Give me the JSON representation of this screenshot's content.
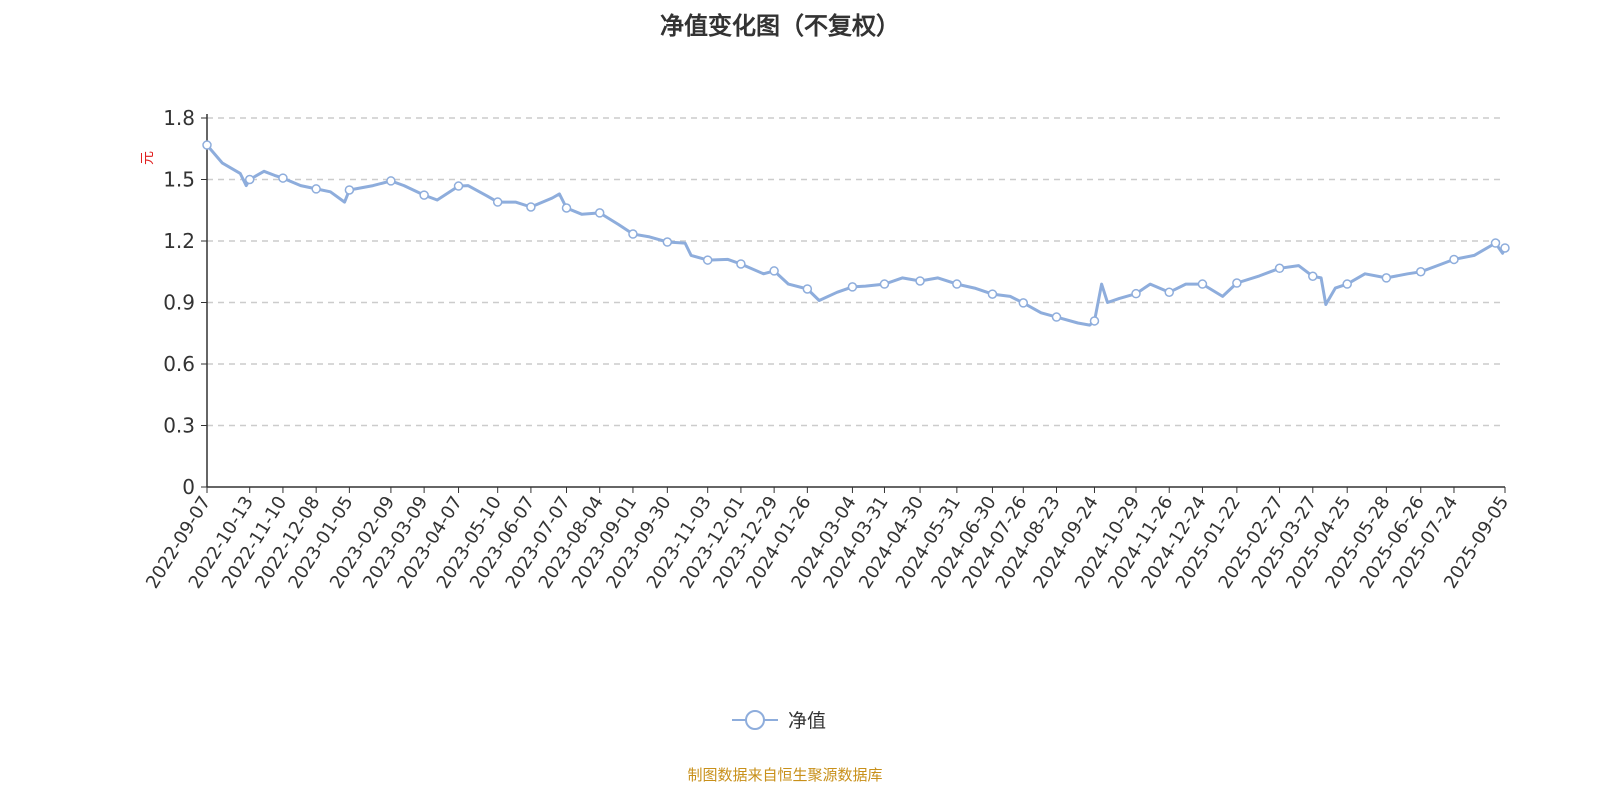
{
  "title": "净值变化图（不复权）",
  "source": "制图数据来自恒生聚源数据库",
  "chart_data": {
    "type": "line",
    "title": "净值变化图（不复权）",
    "ylabel": "元",
    "ylim": [
      0,
      1.8
    ],
    "yticks": [
      "0",
      "0.3",
      "0.6",
      "0.9",
      "1.2",
      "1.5",
      "1.8"
    ],
    "xlim": [
      "2022-09-07",
      "2025-09-05"
    ],
    "xticks": [
      "2022-09-07",
      "2022-10-13",
      "2022-11-10",
      "2022-12-08",
      "2023-01-05",
      "2023-02-09",
      "2023-03-09",
      "2023-04-07",
      "2023-05-10",
      "2023-06-07",
      "2023-07-07",
      "2023-08-04",
      "2023-09-01",
      "2023-09-30",
      "2023-11-03",
      "2023-12-01",
      "2023-12-29",
      "2024-01-26",
      "2024-03-04",
      "2024-03-31",
      "2024-04-30",
      "2024-05-31",
      "2024-06-30",
      "2024-07-26",
      "2024-08-23",
      "2024-09-24",
      "2024-10-29",
      "2024-11-26",
      "2024-12-24",
      "2025-01-22",
      "2025-02-27",
      "2025-03-27",
      "2025-04-25",
      "2025-05-28",
      "2025-06-26",
      "2025-07-24",
      "2025-09-05"
    ],
    "grid": true,
    "legend": "bottom",
    "color": "#8eaddc",
    "series": [
      {
        "name": "净值",
        "points": [
          [
            "2022-09-07",
            1.668
          ],
          [
            "2022-09-20",
            1.58
          ],
          [
            "2022-10-05",
            1.53
          ],
          [
            "2022-10-10",
            1.47
          ],
          [
            "2022-10-13",
            1.5
          ],
          [
            "2022-10-25",
            1.54
          ],
          [
            "2022-11-03",
            1.52
          ],
          [
            "2022-11-10",
            1.507
          ],
          [
            "2022-11-25",
            1.47
          ],
          [
            "2022-12-08",
            1.454
          ],
          [
            "2022-12-20",
            1.44
          ],
          [
            "2023-01-01",
            1.39
          ],
          [
            "2023-01-05",
            1.449
          ],
          [
            "2023-01-25",
            1.47
          ],
          [
            "2023-02-09",
            1.493
          ],
          [
            "2023-02-20",
            1.47
          ],
          [
            "2023-03-09",
            1.424
          ],
          [
            "2023-03-20",
            1.4
          ],
          [
            "2023-04-07",
            1.468
          ],
          [
            "2023-04-15",
            1.47
          ],
          [
            "2023-05-01",
            1.42
          ],
          [
            "2023-05-10",
            1.39
          ],
          [
            "2023-05-25",
            1.39
          ],
          [
            "2023-06-07",
            1.366
          ],
          [
            "2023-06-25",
            1.41
          ],
          [
            "2023-07-01",
            1.43
          ],
          [
            "2023-07-07",
            1.361
          ],
          [
            "2023-07-20",
            1.33
          ],
          [
            "2023-08-04",
            1.337
          ],
          [
            "2023-08-20",
            1.28
          ],
          [
            "2023-09-01",
            1.234
          ],
          [
            "2023-09-15",
            1.22
          ],
          [
            "2023-09-30",
            1.195
          ],
          [
            "2023-10-15",
            1.19
          ],
          [
            "2023-10-20",
            1.13
          ],
          [
            "2023-11-03",
            1.107
          ],
          [
            "2023-11-20",
            1.11
          ],
          [
            "2023-12-01",
            1.088
          ],
          [
            "2023-12-20",
            1.04
          ],
          [
            "2023-12-29",
            1.054
          ],
          [
            "2024-01-10",
            0.99
          ],
          [
            "2024-01-26",
            0.966
          ],
          [
            "2024-02-05",
            0.91
          ],
          [
            "2024-02-20",
            0.95
          ],
          [
            "2024-03-04",
            0.976
          ],
          [
            "2024-03-15",
            0.98
          ],
          [
            "2024-03-31",
            0.99
          ],
          [
            "2024-04-15",
            1.02
          ],
          [
            "2024-04-30",
            1.005
          ],
          [
            "2024-05-15",
            1.02
          ],
          [
            "2024-05-31",
            0.99
          ],
          [
            "2024-06-15",
            0.97
          ],
          [
            "2024-06-30",
            0.941
          ],
          [
            "2024-07-15",
            0.93
          ],
          [
            "2024-07-26",
            0.898
          ],
          [
            "2024-08-10",
            0.85
          ],
          [
            "2024-08-23",
            0.829
          ],
          [
            "2024-09-10",
            0.8
          ],
          [
            "2024-09-20",
            0.79
          ],
          [
            "2024-09-24",
            0.81
          ],
          [
            "2024-09-30",
            0.99
          ],
          [
            "2024-10-05",
            0.9
          ],
          [
            "2024-10-15",
            0.92
          ],
          [
            "2024-10-29",
            0.943
          ],
          [
            "2024-11-10",
            0.99
          ],
          [
            "2024-11-26",
            0.95
          ],
          [
            "2024-12-10",
            0.99
          ],
          [
            "2024-12-24",
            0.99
          ],
          [
            "2025-01-10",
            0.93
          ],
          [
            "2025-01-22",
            0.995
          ],
          [
            "2025-02-10",
            1.03
          ],
          [
            "2025-02-27",
            1.067
          ],
          [
            "2025-03-15",
            1.08
          ],
          [
            "2025-03-27",
            1.028
          ],
          [
            "2025-04-03",
            1.02
          ],
          [
            "2025-04-07",
            0.89
          ],
          [
            "2025-04-15",
            0.97
          ],
          [
            "2025-04-25",
            0.99
          ],
          [
            "2025-05-10",
            1.04
          ],
          [
            "2025-05-28",
            1.02
          ],
          [
            "2025-06-15",
            1.04
          ],
          [
            "2025-06-26",
            1.05
          ],
          [
            "2025-07-10",
            1.08
          ],
          [
            "2025-07-24",
            1.11
          ],
          [
            "2025-08-10",
            1.13
          ],
          [
            "2025-08-28",
            1.19
          ],
          [
            "2025-09-03",
            1.14
          ],
          [
            "2025-09-05",
            1.166
          ]
        ],
        "marker_dates": [
          "2022-09-07",
          "2022-10-13",
          "2022-11-10",
          "2022-12-08",
          "2023-01-05",
          "2023-02-09",
          "2023-03-09",
          "2023-04-07",
          "2023-05-10",
          "2023-06-07",
          "2023-07-07",
          "2023-08-04",
          "2023-09-01",
          "2023-09-30",
          "2023-11-03",
          "2023-12-01",
          "2023-12-29",
          "2024-01-26",
          "2024-03-04",
          "2024-03-31",
          "2024-04-30",
          "2024-05-31",
          "2024-06-30",
          "2024-07-26",
          "2024-08-23",
          "2024-09-24",
          "2024-10-29",
          "2024-11-26",
          "2024-12-24",
          "2025-01-22",
          "2025-02-27",
          "2025-03-27",
          "2025-04-25",
          "2025-05-28",
          "2025-06-26",
          "2025-07-24",
          "2025-08-28",
          "2025-09-05"
        ]
      }
    ]
  }
}
